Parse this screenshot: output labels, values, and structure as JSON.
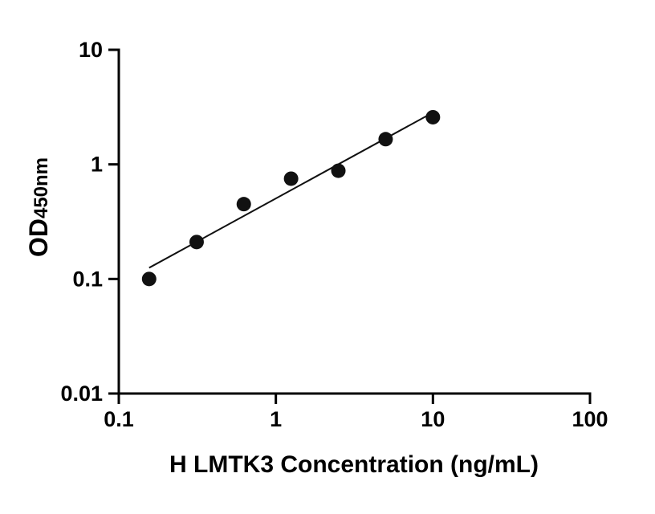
{
  "chart_data": {
    "type": "scatter",
    "title": "",
    "xlabel": "H LMTK3 Concentration (ng/mL)",
    "ylabel": "OD450nm",
    "ylabel_main": "OD",
    "ylabel_sub": "450nm",
    "x_scale": "log",
    "y_scale": "log",
    "xlim": [
      0.1,
      100
    ],
    "ylim": [
      0.01,
      10
    ],
    "x_ticks": [
      0.1,
      1,
      10,
      100
    ],
    "x_tick_labels": [
      "0.1",
      "1",
      "10",
      "100"
    ],
    "y_ticks": [
      0.01,
      0.1,
      1,
      10
    ],
    "y_tick_labels": [
      "0.01",
      "0.1",
      "1",
      "10"
    ],
    "grid": false,
    "legend": false,
    "series": [
      {
        "name": "standard-curve",
        "marker": "circle",
        "color": "#111111",
        "x": [
          0.156,
          0.313,
          0.625,
          1.25,
          2.5,
          5,
          10
        ],
        "y": [
          0.1,
          0.21,
          0.45,
          0.75,
          0.88,
          1.66,
          2.58
        ]
      }
    ],
    "trendline": {
      "type": "linear-loglog-regression",
      "x_range": [
        0.156,
        10
      ],
      "color": "#111111"
    },
    "colors": {
      "axis": "#000000",
      "point": "#111111",
      "line": "#111111"
    }
  }
}
